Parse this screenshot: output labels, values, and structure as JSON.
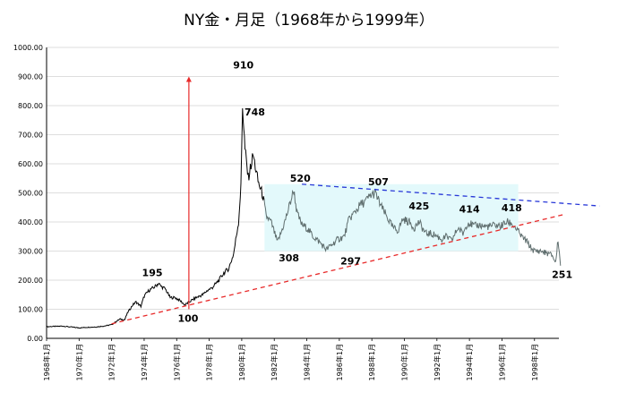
{
  "chart_data": {
    "type": "line",
    "title": "NY金・月足（1968年から1999年）",
    "xlabel": "",
    "ylabel": "",
    "ylim": [
      0,
      1000
    ],
    "yticks": [
      "0.00",
      "100.00",
      "200.00",
      "300.00",
      "400.00",
      "500.00",
      "600.00",
      "700.00",
      "800.00",
      "900.00",
      "1000.00"
    ],
    "xlim": [
      1968.0,
      1999.5
    ],
    "xticks": [
      {
        "x": 1968,
        "label": "1968年1月"
      },
      {
        "x": 1970,
        "label": "1970年1月"
      },
      {
        "x": 1972,
        "label": "1972年1月"
      },
      {
        "x": 1974,
        "label": "1974年1月"
      },
      {
        "x": 1976,
        "label": "1976年1月"
      },
      {
        "x": 1978,
        "label": "1978年1月"
      },
      {
        "x": 1980,
        "label": "1980年1月"
      },
      {
        "x": 1982,
        "label": "1982年1月"
      },
      {
        "x": 1984,
        "label": "1984年1月"
      },
      {
        "x": 1986,
        "label": "1986年1月"
      },
      {
        "x": 1988,
        "label": "1988年1月"
      },
      {
        "x": 1990,
        "label": "1990年1月"
      },
      {
        "x": 1992,
        "label": "1992年1月"
      },
      {
        "x": 1994,
        "label": "1994年1月"
      },
      {
        "x": 1996,
        "label": "1996年1月"
      },
      {
        "x": 1998,
        "label": "1998年1月"
      }
    ],
    "grid": true,
    "series": [
      {
        "color": "#000000",
        "x": [
          1968.0,
          1969.0,
          1970.0,
          1970.5,
          1971.0,
          1971.5,
          1972.0,
          1972.5,
          1972.8,
          1973.0,
          1973.3,
          1973.5,
          1973.8,
          1974.0,
          1974.3,
          1974.6,
          1974.9,
          1975.0,
          1975.3,
          1975.6,
          1975.9,
          1976.2,
          1976.5,
          1976.9,
          1977.2,
          1977.6,
          1977.9,
          1978.2,
          1978.6,
          1978.9,
          1979.2,
          1979.5,
          1979.8,
          1979.95,
          1980.05,
          1980.2,
          1980.4,
          1980.7,
          1981.0,
          1981.3,
          1981.5,
          1981.8,
          1982.2,
          1982.4,
          1982.7,
          1983.0,
          1983.2,
          1983.4,
          1983.7,
          1984.0,
          1984.4,
          1984.8,
          1985.2,
          1985.5,
          1985.9,
          1986.3,
          1986.6,
          1986.9,
          1987.3,
          1987.6,
          1987.9,
          1988.2,
          1988.6,
          1988.9,
          1989.3,
          1989.6,
          1989.9,
          1990.3,
          1990.6,
          1990.9,
          1991.3,
          1991.6,
          1991.9,
          1992.3,
          1992.6,
          1992.9,
          1993.3,
          1993.6,
          1993.9,
          1994.3,
          1994.6,
          1994.9,
          1995.3,
          1995.6,
          1995.9,
          1996.3,
          1996.6,
          1996.9,
          1997.2,
          1997.5,
          1997.8,
          1998.0,
          1998.4,
          1998.8,
          1999.1,
          1999.3,
          1999.45,
          1999.6
        ]
      },
      {
        "color": "#5f6e6e",
        "x_from": 1981.4
      }
    ],
    "values": [
      40,
      42,
      36,
      38,
      39,
      42,
      47,
      66,
      64,
      90,
      115,
      125,
      110,
      145,
      165,
      175,
      190,
      180,
      170,
      140,
      140,
      130,
      115,
      130,
      140,
      150,
      165,
      175,
      200,
      225,
      240,
      290,
      400,
      520,
      800,
      650,
      550,
      630,
      540,
      490,
      420,
      400,
      330,
      360,
      410,
      470,
      510,
      430,
      390,
      380,
      350,
      330,
      305,
      320,
      340,
      350,
      410,
      430,
      460,
      470,
      490,
      500,
      450,
      420,
      380,
      370,
      410,
      400,
      380,
      400,
      360,
      360,
      355,
      340,
      350,
      335,
      380,
      360,
      400,
      385,
      390,
      385,
      385,
      390,
      385,
      400,
      395,
      375,
      350,
      335,
      310,
      300,
      300,
      292,
      285,
      260,
      340,
      250
    ],
    "shaded_region": {
      "x0": 1981.4,
      "x1": 1997.0,
      "y0": 300,
      "y1": 530,
      "color": "#e3f9fb"
    },
    "trendlines": [
      {
        "color": "#e82a2a",
        "style": "dashed",
        "x0": 1972.0,
        "y0": 50,
        "x1": 1999.9,
        "y1": 427
      },
      {
        "color": "#2838d8",
        "style": "dashed",
        "x0": 1983.7,
        "y0": 530,
        "x1": 2002.0,
        "y1": 455
      }
    ],
    "arrow": {
      "color": "#e82a2a",
      "x": 1976.75,
      "y0": 100,
      "y1": 900
    },
    "annotations": [
      {
        "x": 1980.1,
        "y": 910,
        "text": "910",
        "color": "#000000"
      },
      {
        "x": 1980.8,
        "y": 748,
        "text": "748",
        "color": "#000000"
      },
      {
        "x": 1983.6,
        "y": 520,
        "text": "520",
        "color": "#000000"
      },
      {
        "x": 1988.4,
        "y": 507,
        "text": "507",
        "color": "#000000"
      },
      {
        "x": 1990.9,
        "y": 425,
        "text": "425",
        "color": "#5c6b6b"
      },
      {
        "x": 1994.0,
        "y": 414,
        "text": "414",
        "color": "#5c6b6b"
      },
      {
        "x": 1996.6,
        "y": 418,
        "text": "418",
        "color": "#5c6b6b"
      },
      {
        "x": 1974.5,
        "y": 195,
        "text": "195",
        "color": "#000000"
      },
      {
        "x": 1976.7,
        "y": 100,
        "text": "100",
        "color": "#000000"
      },
      {
        "x": 1982.9,
        "y": 308,
        "text": "308",
        "color": "#000000"
      },
      {
        "x": 1986.7,
        "y": 297,
        "text": "297",
        "color": "#000000"
      },
      {
        "x": 1999.7,
        "y": 251,
        "text": "251",
        "color": "#000000"
      }
    ]
  }
}
